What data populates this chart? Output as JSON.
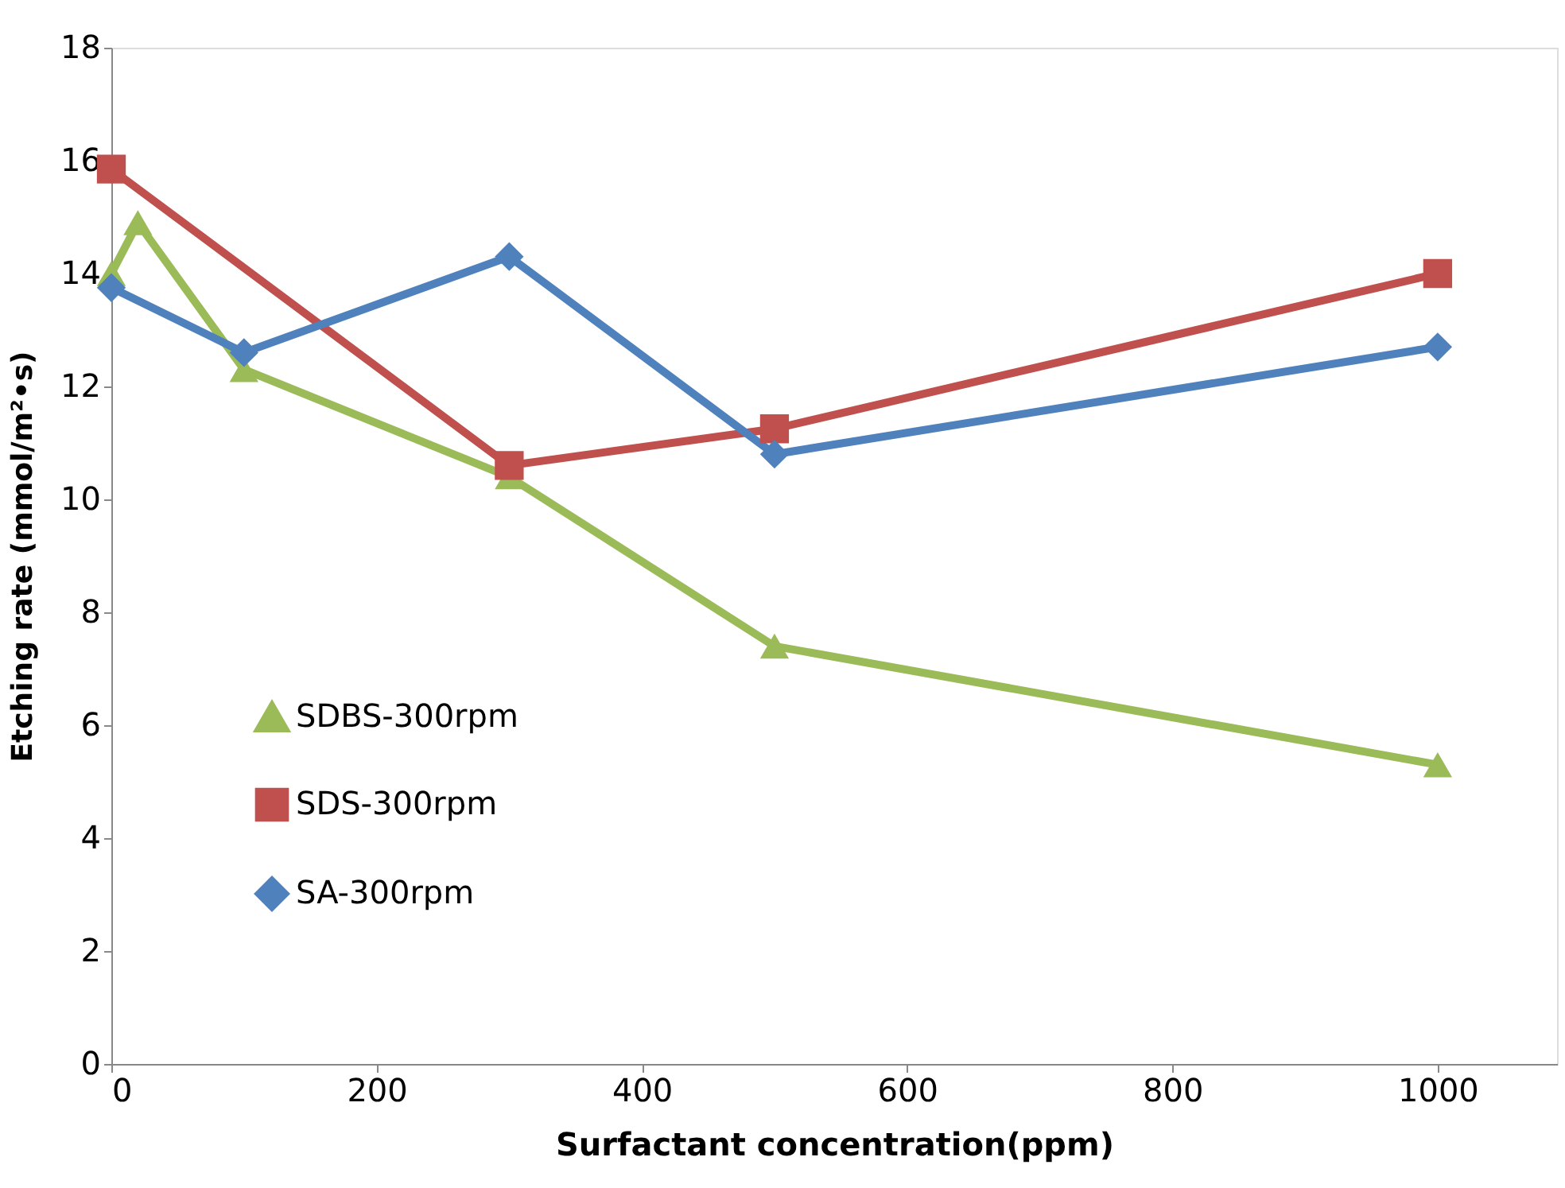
{
  "chart_data": {
    "type": "line",
    "xlabel": "Surfactant concentration(ppm)",
    "ylabel": "Etching rate (mmol/m²•s)",
    "xlim": [
      0,
      1090
    ],
    "xticks": [
      0,
      200,
      400,
      600,
      800,
      {
        "value": 1000,
        "label": "1000"
      }
    ],
    "ylim": [
      0,
      18
    ],
    "yticks": [
      0,
      2,
      4,
      6,
      8,
      10,
      12,
      14,
      16,
      18
    ],
    "grid": false,
    "legend": "bottom left",
    "line_style": "solid",
    "series": [
      {
        "name": "SDBS-300rpm",
        "color": "#9bbb59",
        "marker": "triangle",
        "x": [
          0,
          20,
          100,
          300,
          500,
          1000
        ],
        "values": [
          14.0,
          14.9,
          12.3,
          10.4,
          7.4,
          5.3
        ]
      },
      {
        "name": "SDS-300rpm",
        "color": "#c0504d",
        "marker": "square",
        "x": [
          0,
          300,
          500,
          1000
        ],
        "values": [
          15.85,
          10.6,
          11.25,
          14.0
        ]
      },
      {
        "name": "SA-300rpm",
        "color": "#4f81bd",
        "marker": "diamond",
        "x": [
          0,
          100,
          300,
          500,
          1000
        ],
        "values": [
          13.75,
          12.6,
          14.3,
          10.8,
          12.7
        ]
      }
    ]
  }
}
